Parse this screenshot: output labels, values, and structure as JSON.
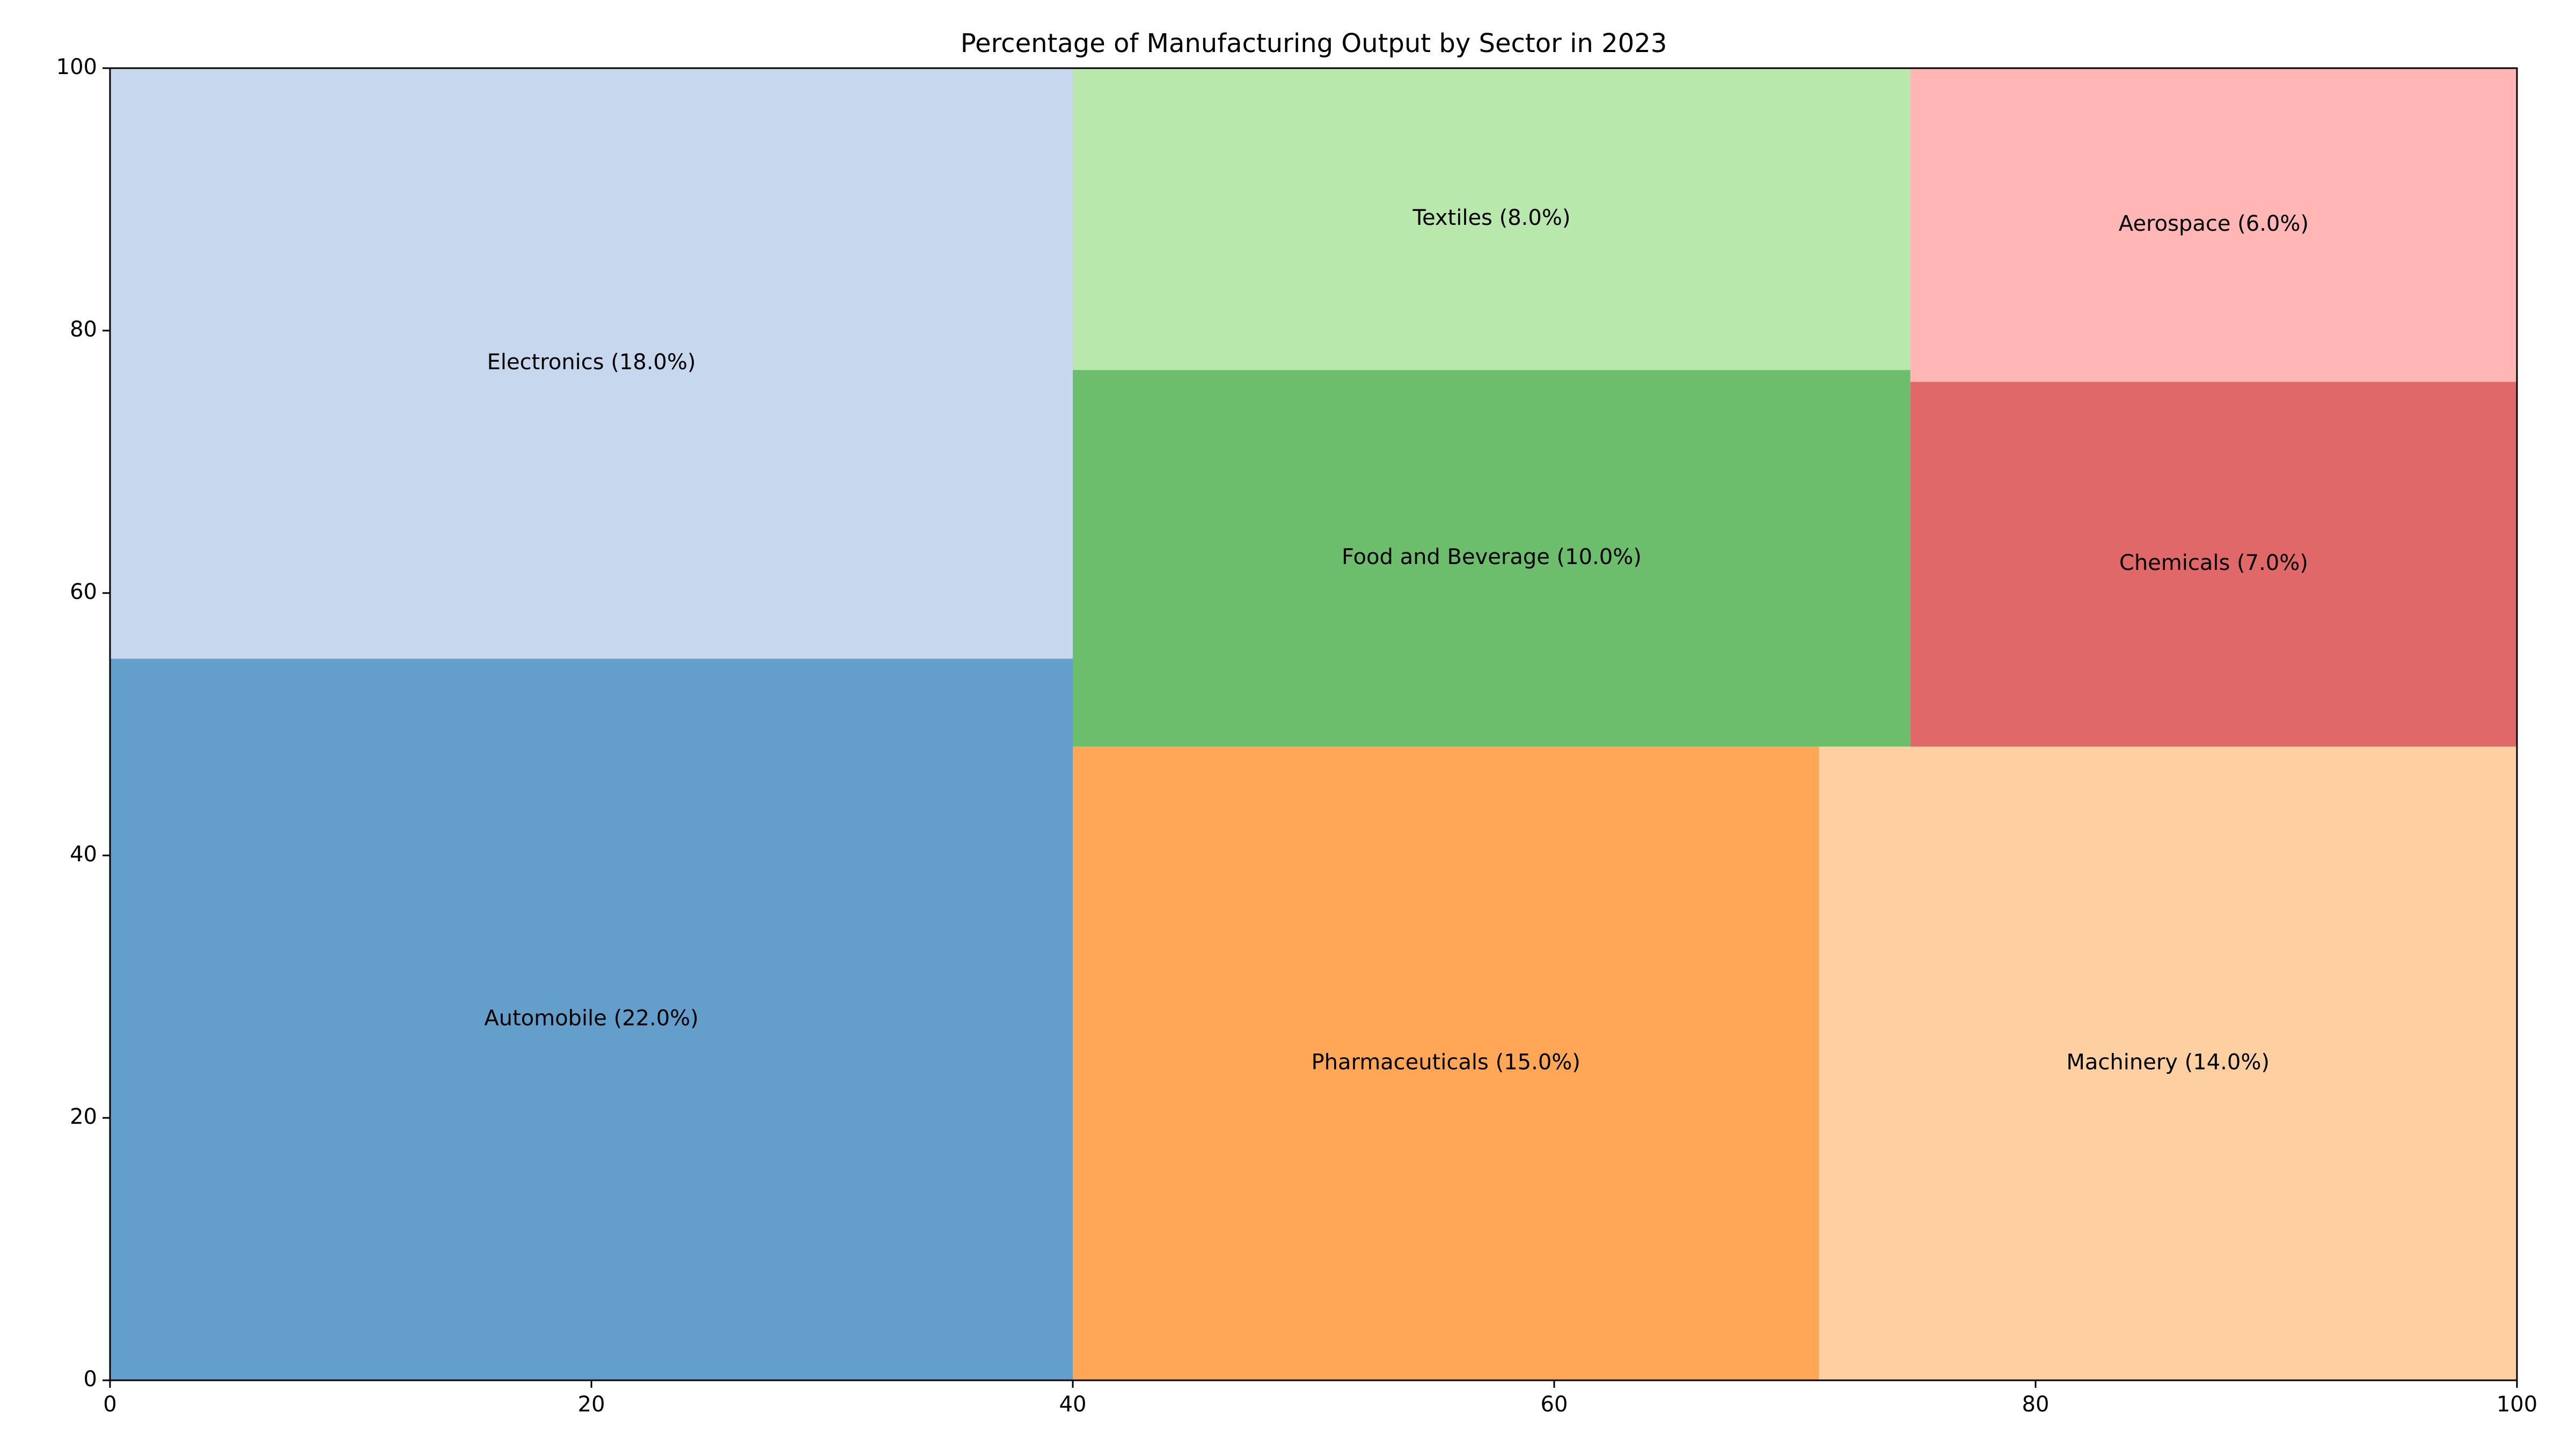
{
  "chart_data": {
    "type": "treemap",
    "title": "Percentage of Manufacturing Output by Sector in 2023",
    "xlabel": "",
    "ylabel": "",
    "xlim": [
      0,
      100
    ],
    "ylim": [
      0,
      100
    ],
    "x_ticks": [
      "0",
      "20",
      "40",
      "60",
      "80",
      "100"
    ],
    "y_ticks": [
      "0",
      "20",
      "40",
      "60",
      "80",
      "100"
    ],
    "grid": false,
    "sectors": [
      {
        "name": "Automobile",
        "value": 22.0,
        "label": "Automobile (22.0%)",
        "x": 0,
        "y": 0,
        "dx": 40.0,
        "dy": 55.0,
        "color": "#639fca"
      },
      {
        "name": "Electronics",
        "value": 18.0,
        "label": "Electronics (18.0%)",
        "x": 0,
        "y": 55.0,
        "dx": 40.0,
        "dy": 45.0,
        "color": "#c7d7ed"
      },
      {
        "name": "Pharmaceuticals",
        "value": 15.0,
        "label": "Pharmaceuticals (15.0%)",
        "x": 40.0,
        "y": 0,
        "dx": 31.0,
        "dy": 48.3,
        "color": "#ffa657"
      },
      {
        "name": "Machinery",
        "value": 14.0,
        "label": "Machinery (14.0%)",
        "x": 71.0,
        "y": 0,
        "dx": 29.0,
        "dy": 48.3,
        "color": "#fdcfa1"
      },
      {
        "name": "Food and Beverage",
        "value": 10.0,
        "label": "Food and Beverage (10.0%)",
        "x": 40.0,
        "y": 48.3,
        "dx": 34.8,
        "dy": 28.7,
        "color": "#6cbe6c"
      },
      {
        "name": "Textiles",
        "value": 8.0,
        "label": "Textiles (8.0%)",
        "x": 40.0,
        "y": 77.0,
        "dx": 34.8,
        "dy": 23.0,
        "color": "#b8e8ac"
      },
      {
        "name": "Chemicals",
        "value": 7.0,
        "label": "Chemicals (7.0%)",
        "x": 74.8,
        "y": 48.3,
        "dx": 25.2,
        "dy": 27.8,
        "color": "#e16868"
      },
      {
        "name": "Aerospace",
        "value": 6.0,
        "label": "Aerospace (6.0%)",
        "x": 74.8,
        "y": 76.1,
        "dx": 25.2,
        "dy": 23.9,
        "color": "#ffb6b5"
      }
    ]
  }
}
